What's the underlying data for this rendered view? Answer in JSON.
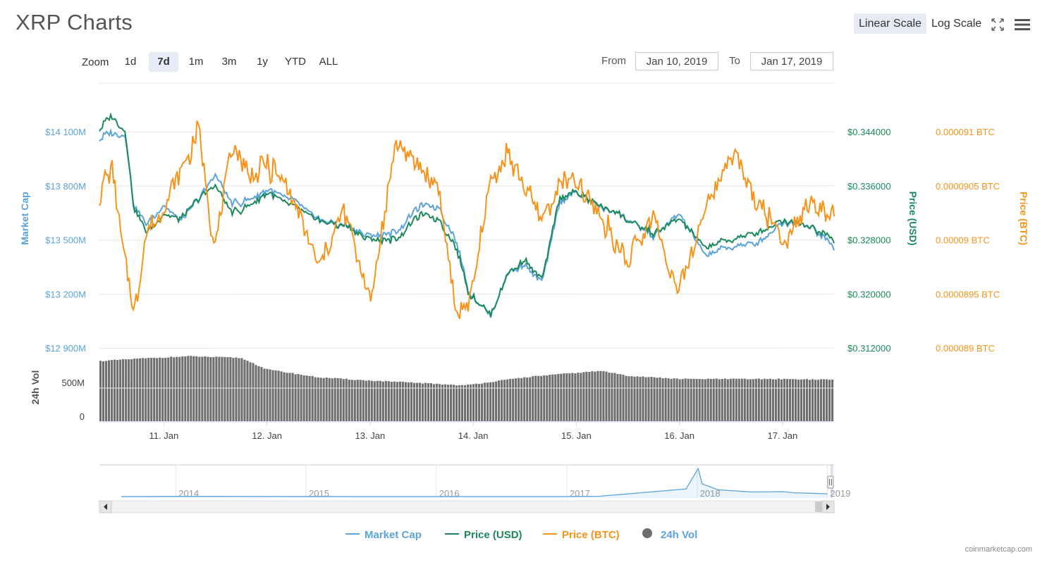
{
  "header": {
    "title": "XRP Charts",
    "linear_label": "Linear Scale",
    "log_label": "Log Scale",
    "fullscreen_icon": "fullscreen-icon",
    "menu_icon": "hamburger-menu-icon"
  },
  "zoom": {
    "label": "Zoom",
    "options": [
      "1d",
      "7d",
      "1m",
      "3m",
      "1y",
      "YTD",
      "ALL"
    ],
    "active": "7d"
  },
  "range": {
    "from_label": "From",
    "from_value": "Jan 10, 2019",
    "to_label": "To",
    "to_value": "Jan 17, 2019"
  },
  "credit": "coinmarketcap.com",
  "colors": {
    "market_cap": "#5ba3d9",
    "price_usd": "#1b8a5a",
    "price_btc": "#f7931a",
    "vol": "#6e6e6e"
  },
  "chart_data": [
    {
      "type": "line",
      "title": "XRP Charts",
      "x_range": [
        "2019-01-10T09:00",
        "2019-01-17T12:00"
      ],
      "x_ticks": [
        "11. Jan",
        "12. Jan",
        "13. Jan",
        "14. Jan",
        "15. Jan",
        "16. Jan",
        "17. Jan"
      ],
      "x_tick_dates": [
        "2019-01-11",
        "2019-01-12",
        "2019-01-13",
        "2019-01-14",
        "2019-01-15",
        "2019-01-16",
        "2019-01-17"
      ],
      "axes": {
        "market_cap": {
          "label": "Market Cap",
          "ticks": [
            "$14 100M",
            "$13 800M",
            "$13 500M",
            "$13 200M",
            "$12 900M"
          ],
          "range": [
            12900,
            14100
          ]
        },
        "price_usd": {
          "label": "Price (USD)",
          "ticks": [
            "$0.344000",
            "$0.336000",
            "$0.328000",
            "$0.320000",
            "$0.312000"
          ],
          "range": [
            0.312,
            0.344
          ]
        },
        "price_btc": {
          "label": "Price (BTC)",
          "ticks": [
            "0.000091 BTC",
            "0.0000905 BTC",
            "0.00009 BTC",
            "0.0000895 BTC",
            "0.000089 BTC"
          ],
          "range": [
            8.9e-05,
            9.1e-05
          ]
        }
      },
      "series": [
        {
          "name": "Market Cap",
          "axis": "market_cap",
          "color": "#5ba3d9",
          "x": [
            "2019-01-10T09:00",
            "2019-01-10T12:00",
            "2019-01-10T15:00",
            "2019-01-10T17:00",
            "2019-01-10T20:00",
            "2019-01-11T00:00",
            "2019-01-11T04:00",
            "2019-01-11T08:00",
            "2019-01-11T12:00",
            "2019-01-11T16:00",
            "2019-01-11T20:00",
            "2019-01-12T00:00",
            "2019-01-12T06:00",
            "2019-01-12T12:00",
            "2019-01-12T18:00",
            "2019-01-13T00:00",
            "2019-01-13T06:00",
            "2019-01-13T12:00",
            "2019-01-13T16:00",
            "2019-01-13T20:00",
            "2019-01-13T23:00",
            "2019-01-14T04:00",
            "2019-01-14T08:00",
            "2019-01-14T12:00",
            "2019-01-14T16:00",
            "2019-01-14T20:00",
            "2019-01-15T00:00",
            "2019-01-15T06:00",
            "2019-01-15T12:00",
            "2019-01-15T18:00",
            "2019-01-16T00:00",
            "2019-01-16T06:00",
            "2019-01-16T12:00",
            "2019-01-16T18:00",
            "2019-01-17T00:00",
            "2019-01-17T06:00",
            "2019-01-17T12:00"
          ],
          "values": [
            14060,
            14100,
            14080,
            13700,
            13580,
            13700,
            13600,
            13720,
            13860,
            13700,
            13720,
            13780,
            13720,
            13620,
            13580,
            13520,
            13540,
            13700,
            13680,
            13500,
            13210,
            13080,
            13320,
            13360,
            13260,
            13700,
            13760,
            13680,
            13620,
            13520,
            13640,
            13420,
            13460,
            13480,
            13600,
            13580,
            13460
          ]
        },
        {
          "name": "Price (USD)",
          "axis": "price_usd",
          "color": "#1b8a5a",
          "x": [
            "2019-01-10T09:00",
            "2019-01-10T12:00",
            "2019-01-10T15:00",
            "2019-01-10T17:00",
            "2019-01-10T20:00",
            "2019-01-11T00:00",
            "2019-01-11T04:00",
            "2019-01-11T08:00",
            "2019-01-11T12:00",
            "2019-01-11T16:00",
            "2019-01-11T20:00",
            "2019-01-12T00:00",
            "2019-01-12T06:00",
            "2019-01-12T12:00",
            "2019-01-12T18:00",
            "2019-01-13T00:00",
            "2019-01-13T06:00",
            "2019-01-13T12:00",
            "2019-01-13T16:00",
            "2019-01-13T20:00",
            "2019-01-13T23:00",
            "2019-01-14T04:00",
            "2019-01-14T08:00",
            "2019-01-14T12:00",
            "2019-01-14T16:00",
            "2019-01-14T20:00",
            "2019-01-15T00:00",
            "2019-01-15T06:00",
            "2019-01-15T12:00",
            "2019-01-15T18:00",
            "2019-01-16T00:00",
            "2019-01-16T06:00",
            "2019-01-16T12:00",
            "2019-01-16T18:00",
            "2019-01-17T00:00",
            "2019-01-17T06:00",
            "2019-01-17T12:00"
          ],
          "values": [
            0.3444,
            0.3465,
            0.344,
            0.333,
            0.329,
            0.332,
            0.331,
            0.334,
            0.336,
            0.332,
            0.333,
            0.335,
            0.333,
            0.331,
            0.33,
            0.328,
            0.328,
            0.332,
            0.331,
            0.327,
            0.32,
            0.317,
            0.323,
            0.325,
            0.322,
            0.334,
            0.335,
            0.333,
            0.331,
            0.329,
            0.331,
            0.327,
            0.328,
            0.329,
            0.331,
            0.33,
            0.328
          ]
        },
        {
          "name": "Price (BTC)",
          "axis": "price_btc",
          "color": "#f7931a",
          "x": [
            "2019-01-10T09:00",
            "2019-01-10T12:00",
            "2019-01-10T15:00",
            "2019-01-10T17:00",
            "2019-01-10T20:00",
            "2019-01-11T00:00",
            "2019-01-11T04:00",
            "2019-01-11T08:00",
            "2019-01-11T12:00",
            "2019-01-11T16:00",
            "2019-01-11T20:00",
            "2019-01-12T00:00",
            "2019-01-12T06:00",
            "2019-01-12T12:00",
            "2019-01-12T18:00",
            "2019-01-13T00:00",
            "2019-01-13T06:00",
            "2019-01-13T12:00",
            "2019-01-13T16:00",
            "2019-01-13T20:00",
            "2019-01-13T23:00",
            "2019-01-14T04:00",
            "2019-01-14T08:00",
            "2019-01-14T12:00",
            "2019-01-14T16:00",
            "2019-01-14T20:00",
            "2019-01-15T00:00",
            "2019-01-15T06:00",
            "2019-01-15T12:00",
            "2019-01-15T18:00",
            "2019-01-16T00:00",
            "2019-01-16T06:00",
            "2019-01-16T12:00",
            "2019-01-16T18:00",
            "2019-01-17T00:00",
            "2019-01-17T06:00",
            "2019-01-17T12:00"
          ],
          "values": [
            9.04e-05,
            9.07e-05,
            8.98e-05,
            8.93e-05,
            9.01e-05,
            9.03e-05,
            9.06e-05,
            9.1e-05,
            8.99e-05,
            9.09e-05,
            9.06e-05,
            9.07e-05,
            9.04e-05,
            8.97e-05,
            9.03e-05,
            8.94e-05,
            9.09e-05,
            9.07e-05,
            9.05e-05,
            8.93e-05,
            8.94e-05,
            9.05e-05,
            9.08e-05,
            9.05e-05,
            9.02e-05,
            9.05e-05,
            9.05e-05,
            9.02e-05,
            8.98e-05,
            9.02e-05,
            8.95e-05,
            9.03e-05,
            9.08e-05,
            9.04e-05,
            9e-05,
            9.03e-05,
            9.02e-05
          ]
        }
      ],
      "legend": [
        "Market Cap",
        "Price (USD)",
        "Price (BTC)",
        "24h Vol"
      ],
      "legend_position": "bottom"
    },
    {
      "type": "bar",
      "series_name": "24h Vol",
      "axis_label": "24h Vol",
      "ticks": [
        "500M",
        "0"
      ],
      "ylim": [
        0,
        850
      ],
      "x": [
        "2019-01-10T09:00",
        "2019-01-10T18:00",
        "2019-01-11T06:00",
        "2019-01-11T18:00",
        "2019-01-12T00:00",
        "2019-01-12T12:00",
        "2019-01-13T00:00",
        "2019-01-13T12:00",
        "2019-01-13T22:00",
        "2019-01-14T12:00",
        "2019-01-14T18:00",
        "2019-01-15T06:00",
        "2019-01-15T12:00",
        "2019-01-16T00:00",
        "2019-01-16T12:00",
        "2019-01-17T00:00",
        "2019-01-17T12:00"
      ],
      "values": [
        740,
        770,
        800,
        780,
        640,
        540,
        500,
        470,
        440,
        540,
        570,
        620,
        560,
        520,
        520,
        520,
        510
      ]
    },
    {
      "type": "area",
      "role": "navigator",
      "x_ticks": [
        "2014",
        "2015",
        "2016",
        "2017",
        "2018",
        "2019"
      ],
      "x": [
        "2013-08",
        "2014-01",
        "2015-01",
        "2016-01",
        "2017-01",
        "2017-04",
        "2017-06",
        "2017-12",
        "2018-01-04",
        "2018-01-15",
        "2018-03",
        "2018-06",
        "2018-09",
        "2018-10",
        "2019-01"
      ],
      "values": [
        0.005,
        0.025,
        0.02,
        0.006,
        0.006,
        0.04,
        0.25,
        0.9,
        3.3,
        1.5,
        0.8,
        0.55,
        0.58,
        0.45,
        0.33
      ]
    }
  ]
}
